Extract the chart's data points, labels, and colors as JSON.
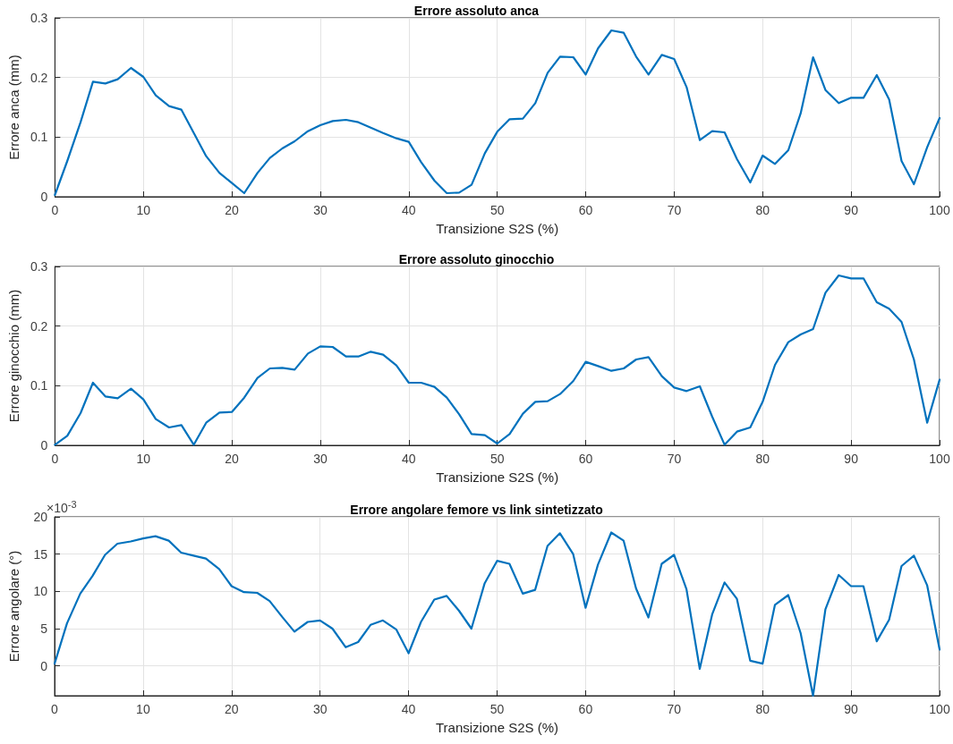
{
  "chart_data": [
    {
      "type": "line",
      "title": "Errore assoluto anca",
      "xlabel": "Transizione S2S (%)",
      "ylabel": "Errore anca (mm)",
      "xlim": [
        0,
        100
      ],
      "xticks": [
        0,
        10,
        20,
        30,
        40,
        50,
        60,
        70,
        80,
        90,
        100
      ],
      "ylim": [
        0,
        0.3
      ],
      "yticks": [
        0,
        0.1,
        0.2,
        0.3
      ],
      "grid": true,
      "x": [
        0,
        1.4,
        2.9,
        4.3,
        5.7,
        7.1,
        8.6,
        10,
        11.4,
        12.9,
        14.3,
        15.7,
        17.1,
        18.6,
        20,
        21.4,
        22.9,
        24.3,
        25.7,
        27.1,
        28.6,
        30,
        31.4,
        32.9,
        34.3,
        35.7,
        37.1,
        38.6,
        40,
        41.4,
        42.9,
        44.3,
        45.7,
        47.1,
        48.6,
        50,
        51.4,
        52.9,
        54.3,
        55.7,
        57.1,
        58.6,
        60,
        61.4,
        62.9,
        64.3,
        65.7,
        67.1,
        68.6,
        70,
        71.4,
        72.9,
        74.3,
        75.7,
        77.1,
        78.6,
        80,
        81.4,
        82.9,
        84.3,
        85.7,
        87.1,
        88.6,
        90,
        91.4,
        92.9,
        94.3,
        95.7,
        97.1,
        98.6,
        100
      ],
      "series": [
        {
          "color": "#0072bd",
          "values": [
            0.003,
            0.06,
            0.125,
            0.193,
            0.19,
            0.197,
            0.216,
            0.201,
            0.17,
            0.152,
            0.146,
            0.107,
            0.068,
            0.04,
            0.023,
            0.006,
            0.04,
            0.065,
            0.081,
            0.093,
            0.11,
            0.12,
            0.127,
            0.129,
            0.125,
            0.116,
            0.107,
            0.098,
            0.092,
            0.058,
            0.027,
            0.006,
            0.007,
            0.02,
            0.073,
            0.109,
            0.13,
            0.131,
            0.157,
            0.208,
            0.235,
            0.234,
            0.205,
            0.249,
            0.279,
            0.275,
            0.235,
            0.205,
            0.238,
            0.231,
            0.184,
            0.095,
            0.11,
            0.108,
            0.063,
            0.024,
            0.069,
            0.055,
            0.078,
            0.14,
            0.234,
            0.179,
            0.157,
            0.166,
            0.166,
            0.204,
            0.163,
            0.06,
            0.021,
            0.083,
            0.132
          ]
        }
      ]
    },
    {
      "type": "line",
      "title": "Errore assoluto ginocchio",
      "xlabel": "Transizione S2S (%)",
      "ylabel": "Errore ginocchio (mm)",
      "xlim": [
        0,
        100
      ],
      "xticks": [
        0,
        10,
        20,
        30,
        40,
        50,
        60,
        70,
        80,
        90,
        100
      ],
      "ylim": [
        0,
        0.3
      ],
      "yticks": [
        0,
        0.1,
        0.2,
        0.3
      ],
      "grid": true,
      "x": [
        0,
        1.4,
        2.9,
        4.3,
        5.7,
        7.1,
        8.6,
        10,
        11.4,
        12.9,
        14.3,
        15.7,
        17.1,
        18.6,
        20,
        21.4,
        22.9,
        24.3,
        25.7,
        27.1,
        28.6,
        30,
        31.4,
        32.9,
        34.3,
        35.7,
        37.1,
        38.6,
        40,
        41.4,
        42.9,
        44.3,
        45.7,
        47.1,
        48.6,
        50,
        51.4,
        52.9,
        54.3,
        55.7,
        57.1,
        58.6,
        60,
        61.4,
        62.9,
        64.3,
        65.7,
        67.1,
        68.6,
        70,
        71.4,
        72.9,
        74.3,
        75.7,
        77.1,
        78.6,
        80,
        81.4,
        82.9,
        84.3,
        85.7,
        87.1,
        88.6,
        90,
        91.4,
        92.9,
        94.3,
        95.7,
        97.1,
        98.6,
        100
      ],
      "series": [
        {
          "color": "#0072bd",
          "values": [
            0.001,
            0.016,
            0.054,
            0.105,
            0.082,
            0.079,
            0.095,
            0.077,
            0.044,
            0.03,
            0.034,
            0.001,
            0.038,
            0.055,
            0.056,
            0.08,
            0.113,
            0.129,
            0.13,
            0.127,
            0.154,
            0.166,
            0.165,
            0.149,
            0.149,
            0.157,
            0.152,
            0.134,
            0.105,
            0.105,
            0.098,
            0.08,
            0.052,
            0.019,
            0.017,
            0.003,
            0.019,
            0.053,
            0.073,
            0.074,
            0.086,
            0.108,
            0.14,
            0.133,
            0.125,
            0.129,
            0.144,
            0.148,
            0.116,
            0.097,
            0.091,
            0.099,
            0.048,
            0.001,
            0.023,
            0.03,
            0.073,
            0.135,
            0.173,
            0.186,
            0.195,
            0.256,
            0.285,
            0.28,
            0.28,
            0.24,
            0.229,
            0.207,
            0.144,
            0.038,
            0.11
          ]
        }
      ]
    },
    {
      "type": "line",
      "title": "Errore angolare femore vs link sintetizzato",
      "xlabel": "Transizione S2S (%)",
      "ylabel": "Errore angolare (°)",
      "annotations": [
        "×10$^{-3}$"
      ],
      "xlim": [
        0,
        100
      ],
      "xticks": [
        0,
        10,
        20,
        30,
        40,
        50,
        60,
        70,
        80,
        90,
        100
      ],
      "ylim": [
        -4,
        20
      ],
      "yticks": [
        0,
        5,
        10,
        15,
        20
      ],
      "grid": true,
      "x": [
        0,
        1.4,
        2.9,
        4.3,
        5.7,
        7.1,
        8.6,
        10,
        11.4,
        12.9,
        14.3,
        15.7,
        17.1,
        18.6,
        20,
        21.4,
        22.9,
        24.3,
        25.7,
        27.1,
        28.6,
        30,
        31.4,
        32.9,
        34.3,
        35.7,
        37.1,
        38.6,
        40,
        41.4,
        42.9,
        44.3,
        45.7,
        47.1,
        48.6,
        50,
        51.4,
        52.9,
        54.3,
        55.7,
        57.1,
        58.6,
        60,
        61.4,
        62.9,
        64.3,
        65.7,
        67.1,
        68.6,
        70,
        71.4,
        72.9,
        74.3,
        75.7,
        77.1,
        78.6,
        80,
        81.4,
        82.9,
        84.3,
        85.7,
        87.1,
        88.6,
        90,
        91.4,
        92.9,
        94.3,
        95.7,
        97.1,
        98.6,
        100
      ],
      "series": [
        {
          "color": "#0072bd",
          "values": [
            0.3,
            5.7,
            9.7,
            12.1,
            14.9,
            16.4,
            16.7,
            17.1,
            17.4,
            16.8,
            15.2,
            14.8,
            14.4,
            13,
            10.7,
            9.9,
            9.8,
            8.7,
            6.6,
            4.6,
            5.9,
            6.1,
            5,
            2.5,
            3.2,
            5.5,
            6.1,
            4.9,
            1.7,
            5.9,
            8.9,
            9.4,
            7.4,
            5,
            11.1,
            14.1,
            13.7,
            9.7,
            10.2,
            16.1,
            17.8,
            15,
            7.8,
            13.6,
            17.9,
            16.8,
            10.4,
            6.5,
            13.7,
            14.9,
            10.3,
            -0.4,
            6.9,
            11.2,
            9,
            0.7,
            0.3,
            8.2,
            9.5,
            4.4,
            -4,
            7.6,
            12.2,
            10.7,
            10.7,
            3.3,
            6.2,
            13.4,
            14.8,
            10.8,
            2.2
          ]
        }
      ]
    }
  ]
}
